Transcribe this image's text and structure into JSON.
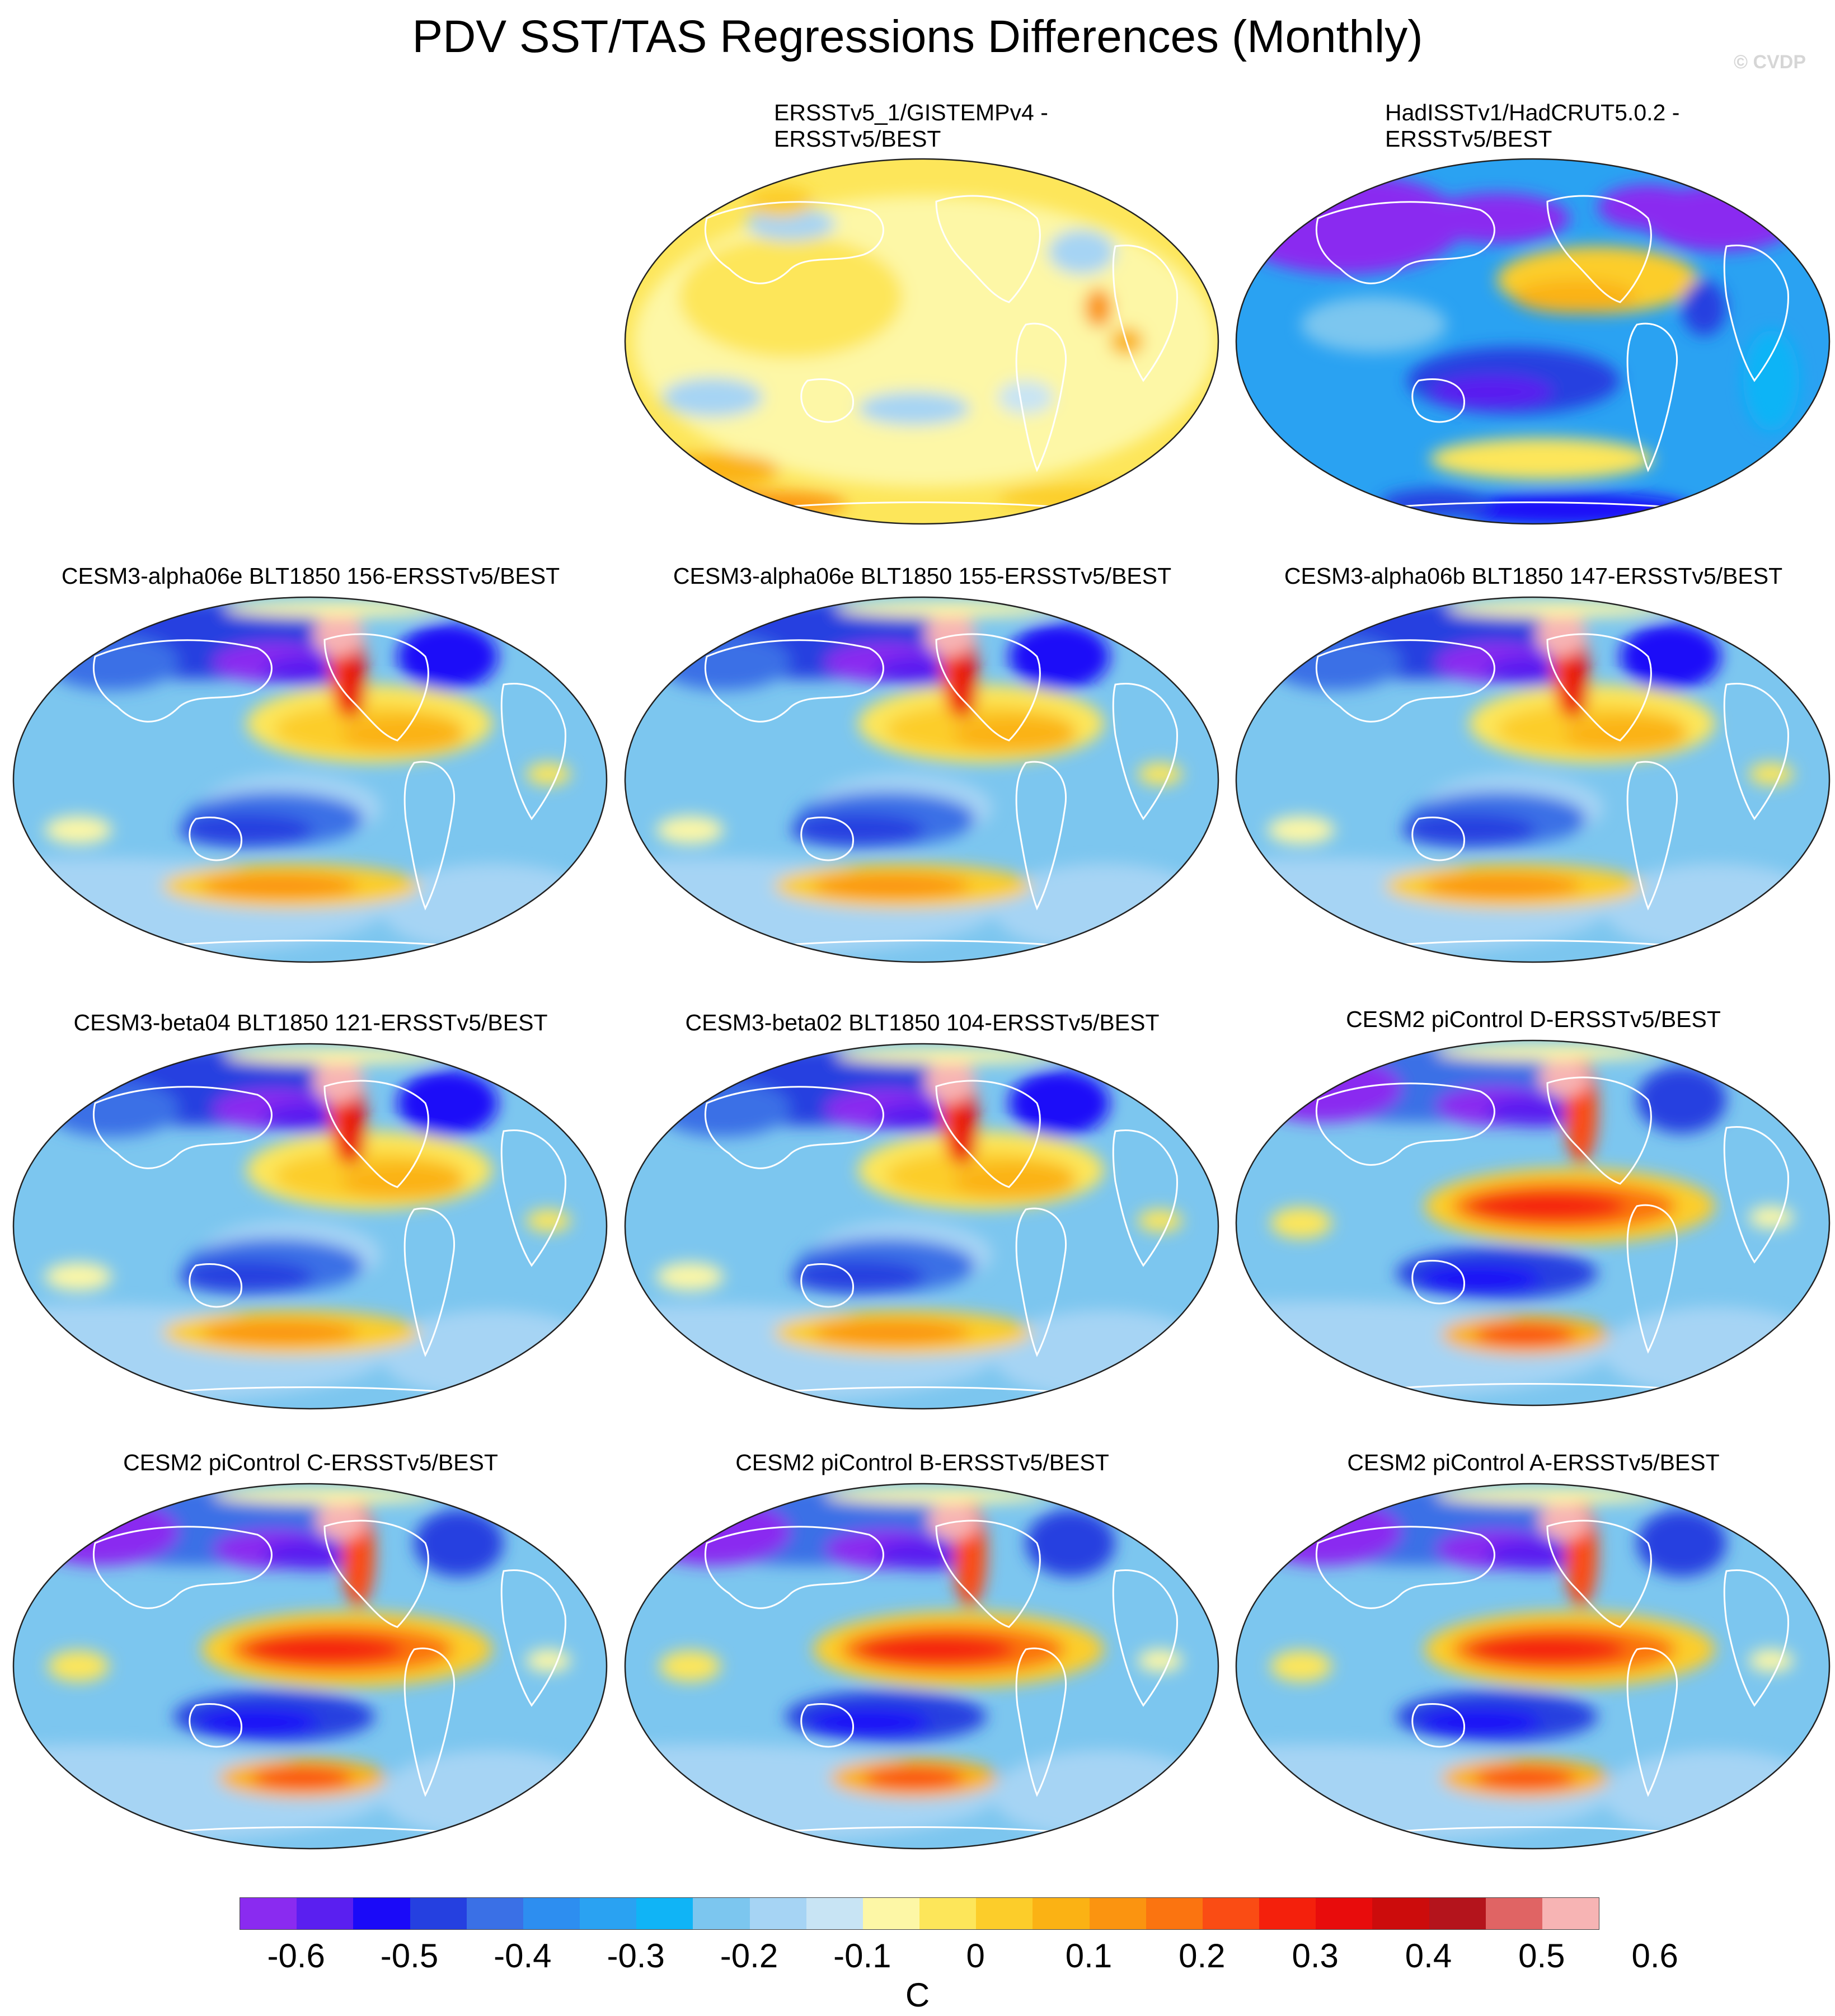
{
  "figure": {
    "title": "PDV SST/TAS Regressions Differences (Monthly)",
    "credit": "© CVDP",
    "units": "C"
  },
  "colorbar": {
    "colors": [
      "#8a2bf0",
      "#5a1ff0",
      "#1a0af8",
      "#2540e0",
      "#3a70e6",
      "#2d8ef0",
      "#2aa2f2",
      "#10b4f6",
      "#7cc6ef",
      "#a6d4f4",
      "#c8e4f4",
      "#fdf7a6",
      "#fde65a",
      "#fccd2a",
      "#fbb214",
      "#fb9410",
      "#fb7410",
      "#fa4c14",
      "#f4200c",
      "#e80c0c",
      "#cc0c0c",
      "#b4141c",
      "#e06464",
      "#f7b4b4"
    ],
    "ticks": [
      "-0.6",
      "-0.5",
      "-0.4",
      "-0.3",
      "-0.2",
      "-0.1",
      "0",
      "0.1",
      "0.2",
      "0.3",
      "0.4",
      "0.5",
      "0.6"
    ]
  },
  "panels": [
    {
      "title": "ERSSTv5_1/GISTEMPv4 -\nERSSTv5/BEST",
      "style": "obs1"
    },
    {
      "title": "HadISSTv1/HadCRUT5.0.2 -\nERSSTv5/BEST",
      "style": "obs2"
    },
    {
      "title": "CESM3-alpha06e BLT1850 156-ERSSTv5/BEST",
      "style": "model"
    },
    {
      "title": "CESM3-alpha06e BLT1850 155-ERSSTv5/BEST",
      "style": "model"
    },
    {
      "title": "CESM3-alpha06b BLT1850 147-ERSSTv5/BEST",
      "style": "model"
    },
    {
      "title": "CESM3-beta04 BLT1850 121-ERSSTv5/BEST",
      "style": "model"
    },
    {
      "title": "CESM3-beta02 BLT1850 104-ERSSTv5/BEST",
      "style": "model"
    },
    {
      "title": "CESM2 piControl D-ERSSTv5/BEST",
      "style": "cesm2"
    },
    {
      "title": "CESM2 piControl C-ERSSTv5/BEST",
      "style": "cesm2"
    },
    {
      "title": "CESM2 piControl B-ERSSTv5/BEST",
      "style": "cesm2"
    },
    {
      "title": "CESM2 piControl A-ERSSTv5/BEST",
      "style": "cesm2"
    }
  ]
}
